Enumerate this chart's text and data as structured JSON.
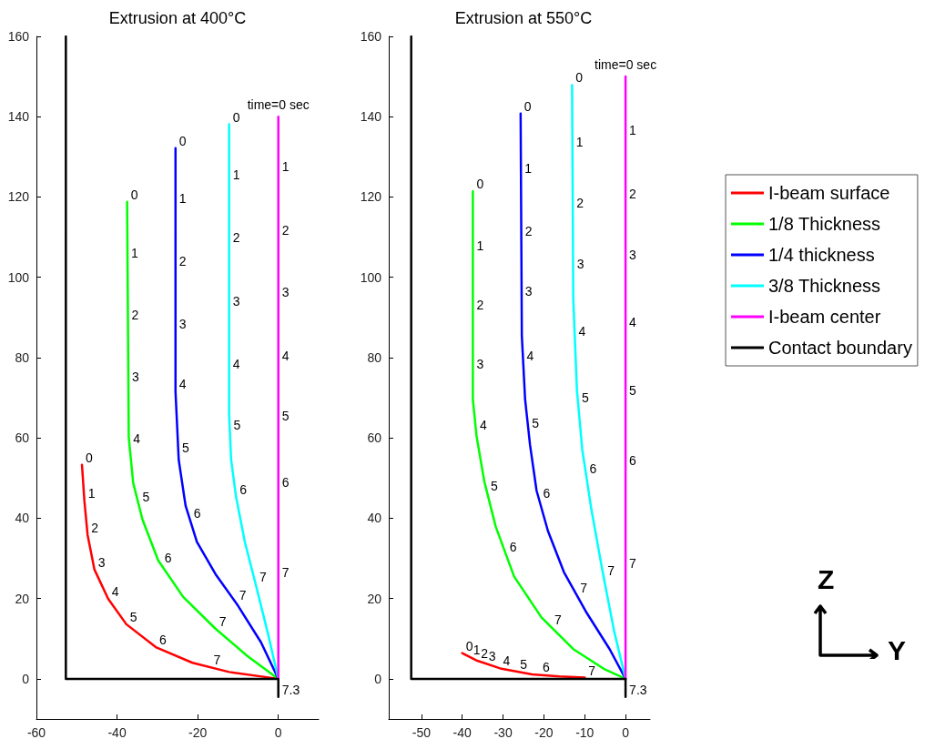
{
  "chart_data": [
    {
      "type": "line",
      "title": "Extrusion at 400°C",
      "xlim": [
        -60,
        10
      ],
      "ylim": [
        -10,
        160
      ],
      "xticks": [
        -60,
        -40,
        -20,
        0
      ],
      "yticks": [
        0,
        20,
        40,
        60,
        80,
        100,
        120,
        140,
        160
      ],
      "grid": false,
      "legend": false,
      "marker": "none",
      "line_style": "solid",
      "series": [
        {
          "color": "#ff0000",
          "x": [
            -48.7,
            -48.1,
            -47.3,
            -45.6,
            -42.2,
            -37.7,
            -30.4,
            -21.3,
            -12.2,
            0
          ],
          "values": [
            53.3,
            44.3,
            35.8,
            27.2,
            19.9,
            13.6,
            7.9,
            4.0,
            1.7,
            0
          ]
        },
        {
          "color": "#00ff00",
          "x": [
            -37.5,
            -37.1,
            -36.0,
            -33.7,
            -29.8,
            -23.6,
            -15.6,
            -7.7,
            0
          ],
          "values": [
            118.8,
            60.2,
            48.8,
            39.7,
            29.5,
            20.4,
            12.5,
            5.7,
            0
          ]
        },
        {
          "color": "#0000ff",
          "x": [
            -25.5,
            -25.5,
            -24.7,
            -23.0,
            -20.2,
            -15.6,
            -10.0,
            -4.3,
            0
          ],
          "values": [
            132.2,
            71.5,
            54.5,
            43.1,
            34.1,
            26.1,
            18.2,
            9.1,
            0
          ]
        },
        {
          "color": "#00ffff",
          "x": [
            -12.2,
            -12.2,
            -11.7,
            -10.5,
            -8.3,
            -5.4,
            -2.6,
            0
          ],
          "values": [
            138.1,
            65.8,
            54.5,
            45.4,
            34.1,
            22.7,
            11.4,
            0
          ]
        },
        {
          "color": "#ff00ff",
          "x": [
            0,
            0
          ],
          "values": [
            140,
            0
          ]
        },
        {
          "color": "#000000",
          "x": [
            -52.7,
            -52.7,
            0,
            0
          ],
          "values": [
            160,
            0,
            0,
            -4.5
          ]
        }
      ],
      "annotations": [
        {
          "text": "0",
          "x": -48.7,
          "y": 53.3
        },
        {
          "text": "1",
          "x": -48.1,
          "y": 44.3
        },
        {
          "text": "2",
          "x": -47.3,
          "y": 35.8
        },
        {
          "text": "3",
          "x": -45.6,
          "y": 27.2
        },
        {
          "text": "4",
          "x": -42.2,
          "y": 19.9
        },
        {
          "text": "5",
          "x": -37.7,
          "y": 13.6
        },
        {
          "text": "6",
          "x": -30.4,
          "y": 7.9
        },
        {
          "text": "7",
          "x": -17.0,
          "y": 2.9
        },
        {
          "text": "0",
          "x": -37.5,
          "y": 118.8
        },
        {
          "text": "1",
          "x": -37.4,
          "y": 104.2
        },
        {
          "text": "2",
          "x": -37.3,
          "y": 88.8
        },
        {
          "text": "3",
          "x": -37.2,
          "y": 73.4
        },
        {
          "text": "4",
          "x": -36.9,
          "y": 58.1
        },
        {
          "text": "5",
          "x": -34.6,
          "y": 43.4
        },
        {
          "text": "6",
          "x": -29.1,
          "y": 28.4
        },
        {
          "text": "7",
          "x": -15.6,
          "y": 12.5
        },
        {
          "text": "0",
          "x": -25.5,
          "y": 132.2
        },
        {
          "text": "1",
          "x": -25.5,
          "y": 117.8
        },
        {
          "text": "2",
          "x": -25.5,
          "y": 102.2
        },
        {
          "text": "3",
          "x": -25.5,
          "y": 86.5
        },
        {
          "text": "4",
          "x": -25.5,
          "y": 71.5
        },
        {
          "text": "5",
          "x": -24.8,
          "y": 55.8
        },
        {
          "text": "6",
          "x": -21.9,
          "y": 39.4
        },
        {
          "text": "7",
          "x": -10.6,
          "y": 19.0
        },
        {
          "text": "0",
          "x": -12.2,
          "y": 138.1
        },
        {
          "text": "1",
          "x": -12.2,
          "y": 123.7
        },
        {
          "text": "2",
          "x": -12.2,
          "y": 108.1
        },
        {
          "text": "3",
          "x": -12.2,
          "y": 92.3
        },
        {
          "text": "4",
          "x": -12.2,
          "y": 76.6
        },
        {
          "text": "5",
          "x": -12.0,
          "y": 61.5
        },
        {
          "text": "6",
          "x": -10.5,
          "y": 45.2
        },
        {
          "text": "7",
          "x": -5.6,
          "y": 23.5
        },
        {
          "text": "1",
          "x": 0,
          "y": 125.8
        },
        {
          "text": "2",
          "x": 0,
          "y": 109.9
        },
        {
          "text": "3",
          "x": 0,
          "y": 94.4
        },
        {
          "text": "4",
          "x": 0,
          "y": 78.7
        },
        {
          "text": "5",
          "x": 0,
          "y": 63.6
        },
        {
          "text": "6",
          "x": 0,
          "y": 47.1
        },
        {
          "text": "7",
          "x": 0,
          "y": 24.6
        },
        {
          "text": "time=0 sec",
          "x": 0,
          "y": 140
        },
        {
          "text": "7.3",
          "x": 0,
          "y": -4.5
        }
      ]
    },
    {
      "type": "line",
      "title": "Extrusion at 550°C",
      "xlim": [
        -58,
        6
      ],
      "ylim": [
        -10,
        160
      ],
      "xticks": [
        -50,
        -40,
        -30,
        -20,
        -10,
        0
      ],
      "yticks": [
        0,
        20,
        40,
        60,
        80,
        100,
        120,
        140,
        160
      ],
      "grid": false,
      "legend": "right",
      "marker": "none",
      "line_style": "solid",
      "series": [
        {
          "name": "I-beam surface",
          "color": "#ff0000",
          "x": [
            -40.0,
            -36.3,
            -30.7,
            -22.9,
            -16.2,
            -10.0
          ],
          "values": [
            6.4,
            4.5,
            2.6,
            1.1,
            0.6,
            0.3
          ]
        },
        {
          "name": "1/8 Thickness",
          "color": "#00ff00",
          "x": [
            -37.4,
            -37.4,
            -36.5,
            -34.6,
            -31.8,
            -27.3,
            -20.6,
            -12.8,
            -5.0,
            0
          ],
          "values": [
            121.4,
            69.6,
            60.5,
            49.2,
            37.9,
            25.5,
            15.3,
            7.4,
            2.3,
            0
          ]
        },
        {
          "name": "1/4 thickness",
          "color": "#0000ff",
          "x": [
            -25.7,
            -25.4,
            -24.6,
            -23.4,
            -21.8,
            -19.0,
            -15.1,
            -9.5,
            -3.9,
            0
          ],
          "values": [
            140.8,
            85.4,
            69.6,
            58.3,
            46.9,
            36.8,
            26.6,
            16.4,
            7.4,
            0
          ]
        },
        {
          "name": "3/8 Thickness",
          "color": "#00ffff",
          "x": [
            -13.1,
            -12.8,
            -11.9,
            -10.6,
            -8.4,
            -5.6,
            -2.8,
            0
          ],
          "values": [
            147.9,
            94.5,
            71.8,
            57.1,
            42.4,
            26.6,
            11.9,
            0
          ]
        },
        {
          "name": "I-beam center",
          "color": "#ff00ff",
          "x": [
            0,
            0
          ],
          "values": [
            150,
            0
          ]
        },
        {
          "name": "Contact boundary",
          "color": "#000000",
          "x": [
            -52.5,
            -52.5,
            0,
            0
          ],
          "values": [
            160,
            0,
            0,
            -4.5
          ]
        }
      ],
      "annotations": [
        {
          "text": "0",
          "x": -40.0,
          "y": 6.4
        },
        {
          "text": "1",
          "x": -38.2,
          "y": 5.4
        },
        {
          "text": "2",
          "x": -36.3,
          "y": 4.5
        },
        {
          "text": "3",
          "x": -34.4,
          "y": 3.9
        },
        {
          "text": "4",
          "x": -30.9,
          "y": 2.7
        },
        {
          "text": "5",
          "x": -26.7,
          "y": 1.9
        },
        {
          "text": "6",
          "x": -21.2,
          "y": 1.0
        },
        {
          "text": "7",
          "x": -10.0,
          "y": 0.3
        },
        {
          "text": "0",
          "x": -37.4,
          "y": 121.4
        },
        {
          "text": "1",
          "x": -37.4,
          "y": 106.1
        },
        {
          "text": "2",
          "x": -37.4,
          "y": 91.3
        },
        {
          "text": "3",
          "x": -37.4,
          "y": 76.7
        },
        {
          "text": "4",
          "x": -36.6,
          "y": 61.4
        },
        {
          "text": "5",
          "x": -33.9,
          "y": 46.2
        },
        {
          "text": "6",
          "x": -29.3,
          "y": 31.1
        },
        {
          "text": "7",
          "x": -18.3,
          "y": 13.0
        },
        {
          "text": "0",
          "x": -25.7,
          "y": 140.8
        },
        {
          "text": "1",
          "x": -25.6,
          "y": 125.3
        },
        {
          "text": "2",
          "x": -25.5,
          "y": 109.7
        },
        {
          "text": "3",
          "x": -25.5,
          "y": 94.7
        },
        {
          "text": "4",
          "x": -25.1,
          "y": 78.6
        },
        {
          "text": "5",
          "x": -23.8,
          "y": 61.9
        },
        {
          "text": "6",
          "x": -21.1,
          "y": 44.5
        },
        {
          "text": "7",
          "x": -12.0,
          "y": 20.9
        },
        {
          "text": "0",
          "x": -13.1,
          "y": 147.9
        },
        {
          "text": "1",
          "x": -13.0,
          "y": 132.0
        },
        {
          "text": "2",
          "x": -12.9,
          "y": 116.7
        },
        {
          "text": "3",
          "x": -12.8,
          "y": 101.6
        },
        {
          "text": "4",
          "x": -12.4,
          "y": 84.8
        },
        {
          "text": "5",
          "x": -11.6,
          "y": 68.1
        },
        {
          "text": "6",
          "x": -9.7,
          "y": 50.6
        },
        {
          "text": "7",
          "x": -5.3,
          "y": 25.1
        },
        {
          "text": "1",
          "x": 0,
          "y": 134.8
        },
        {
          "text": "2",
          "x": 0,
          "y": 119.0
        },
        {
          "text": "3",
          "x": 0,
          "y": 103.8
        },
        {
          "text": "4",
          "x": 0,
          "y": 87.1
        },
        {
          "text": "5",
          "x": 0,
          "y": 70.1
        },
        {
          "text": "6",
          "x": 0,
          "y": 52.6
        },
        {
          "text": "7",
          "x": 0,
          "y": 26.9
        },
        {
          "text": "time=0 sec",
          "x": 0,
          "y": 150
        },
        {
          "text": "7.3",
          "x": 0,
          "y": -4.5
        },
        "Z",
        "Y"
      ]
    }
  ]
}
